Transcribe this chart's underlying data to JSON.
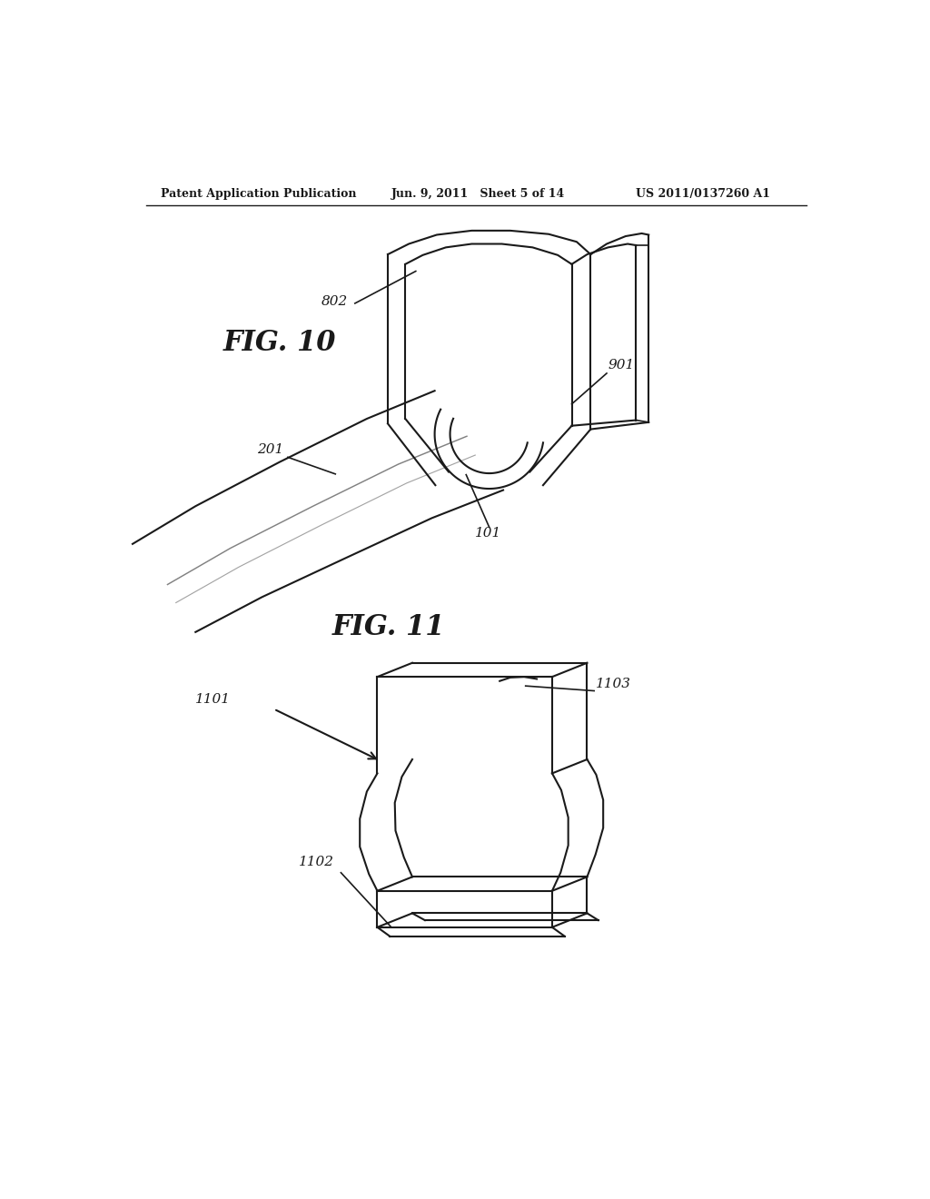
{
  "bg_color": "#ffffff",
  "header_left": "Patent Application Publication",
  "header_mid": "Jun. 9, 2011   Sheet 5 of 14",
  "header_right": "US 2011/0137260 A1",
  "fig10_label": "FIG. 10",
  "fig11_label": "FIG. 11"
}
